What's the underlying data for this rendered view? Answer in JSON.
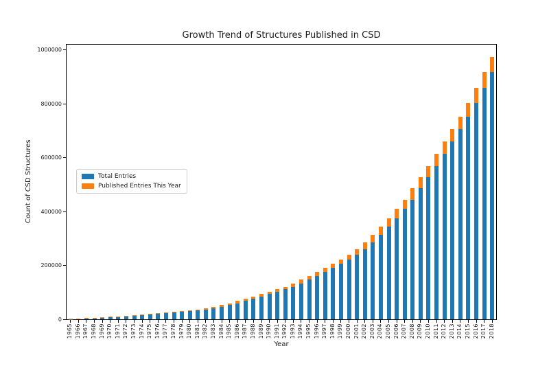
{
  "figure": {
    "background": "#ffffff"
  },
  "chart_data": {
    "type": "bar",
    "stacked": true,
    "title": "Growth Trend of Structures Published in CSD",
    "xlabel": "Year",
    "ylabel": "Count of CSD Structures",
    "ylim": [
      0,
      1020000
    ],
    "yticks": [
      0,
      200000,
      400000,
      600000,
      800000,
      1000000
    ],
    "ytick_labels": [
      "0",
      "200000",
      "400000",
      "600000",
      "800000",
      "1000000"
    ],
    "grid": false,
    "bar_colors": {
      "total": "#1f77b4",
      "new": "#ff7f0e"
    },
    "legend": {
      "position": "center-left",
      "border_color": "#cccccc"
    },
    "categories": [
      "1965",
      "1966",
      "1967",
      "1968",
      "1969",
      "1970",
      "1971",
      "1972",
      "1973",
      "1974",
      "1975",
      "1976",
      "1977",
      "1978",
      "1979",
      "1980",
      "1981",
      "1982",
      "1983",
      "1984",
      "1985",
      "1986",
      "1987",
      "1988",
      "1989",
      "1990",
      "1991",
      "1992",
      "1993",
      "1994",
      "1995",
      "1996",
      "1997",
      "1998",
      "1999",
      "2000",
      "2001",
      "2002",
      "2003",
      "2004",
      "2005",
      "2006",
      "2007",
      "2008",
      "2009",
      "2010",
      "2011",
      "2012",
      "2013",
      "2014",
      "2015",
      "2016",
      "2017",
      "2018"
    ],
    "series": [
      {
        "name": "Total Entries",
        "color": "#1f77b4",
        "values": [
          1200,
          2000,
          3000,
          4200,
          5500,
          7200,
          9000,
          11000,
          13000,
          15500,
          18000,
          20000,
          22500,
          25000,
          27500,
          30000,
          33000,
          37000,
          41000,
          46000,
          52500,
          59000,
          68000,
          76500,
          85000,
          94000,
          102000,
          111000,
          121000,
          133000,
          147000,
          161000,
          176000,
          191000,
          206000,
          222000,
          240000,
          261000,
          285000,
          313000,
          344000,
          376000,
          410000,
          444000,
          487000,
          528000,
          569000,
          615000,
          661000,
          707000,
          753000,
          803000,
          859000,
          917000
        ]
      },
      {
        "name": "Published Entries This Year",
        "color": "#ff7f0e",
        "values": [
          800,
          1000,
          1200,
          1300,
          1700,
          1800,
          2000,
          2000,
          2500,
          2500,
          2000,
          2500,
          2500,
          2500,
          2500,
          3000,
          4000,
          4000,
          5000,
          6500,
          6500,
          9000,
          8500,
          8500,
          9000,
          8000,
          9000,
          10000,
          12000,
          14000,
          14000,
          15000,
          15000,
          15000,
          16000,
          18000,
          21000,
          24000,
          28000,
          31000,
          32000,
          34000,
          34000,
          43000,
          41000,
          41000,
          46000,
          46000,
          46000,
          46000,
          50000,
          56000,
          58000,
          57000
        ]
      }
    ]
  }
}
